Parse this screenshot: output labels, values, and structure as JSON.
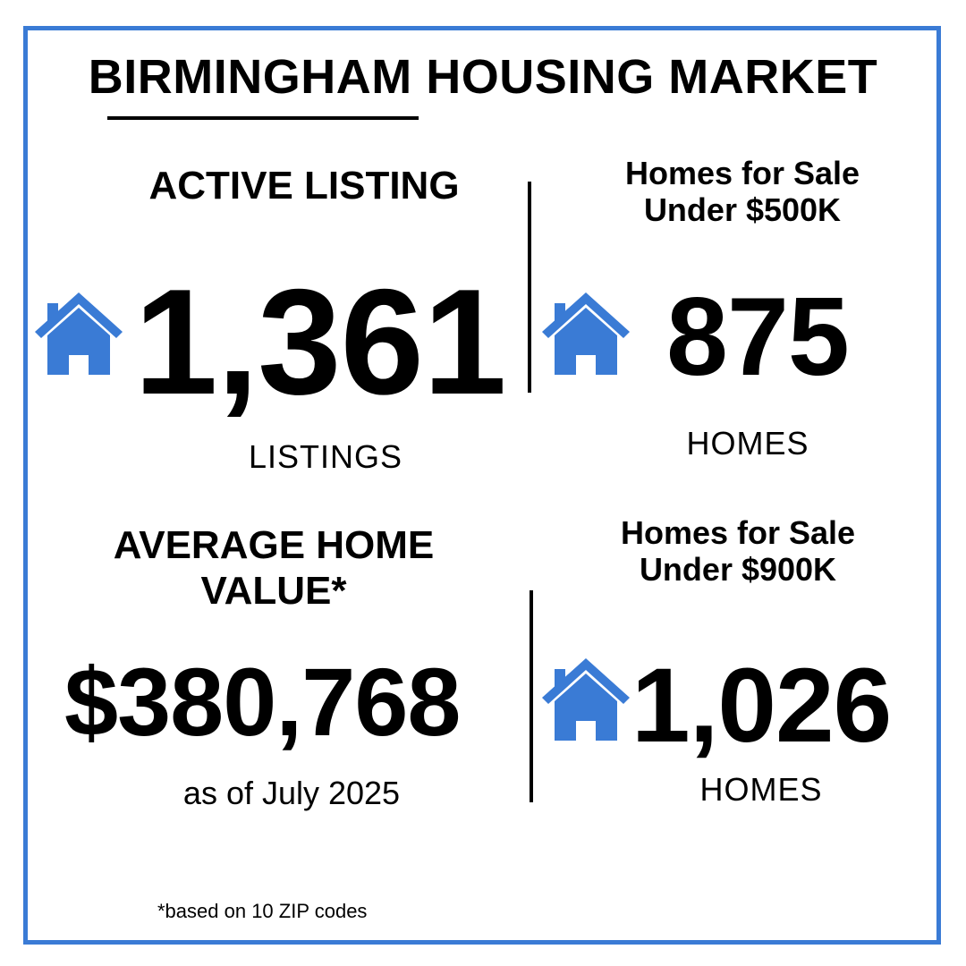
{
  "title": "BIRMINGHAM HOUSING MARKET",
  "colors": {
    "accent": "#3a7bd5",
    "text": "#000000",
    "background": "#ffffff"
  },
  "cards": [
    {
      "heading": "ACTIVE LISTING",
      "icon": "house-icon",
      "value": "1,361",
      "unit": "LISTINGS"
    },
    {
      "heading_line1": "Homes for Sale",
      "heading_line2": "Under $500K",
      "icon": "house-icon",
      "value": "875",
      "unit": "HOMES"
    },
    {
      "heading_line1": "AVERAGE HOME",
      "heading_line2": "VALUE*",
      "value": "$380,768",
      "unit": "as of July 2025"
    },
    {
      "heading_line1": "Homes for Sale",
      "heading_line2": "Under $900K",
      "icon": "house-icon",
      "value": "1,026",
      "unit": "HOMES"
    }
  ],
  "footnote": "*based on 10 ZIP codes"
}
